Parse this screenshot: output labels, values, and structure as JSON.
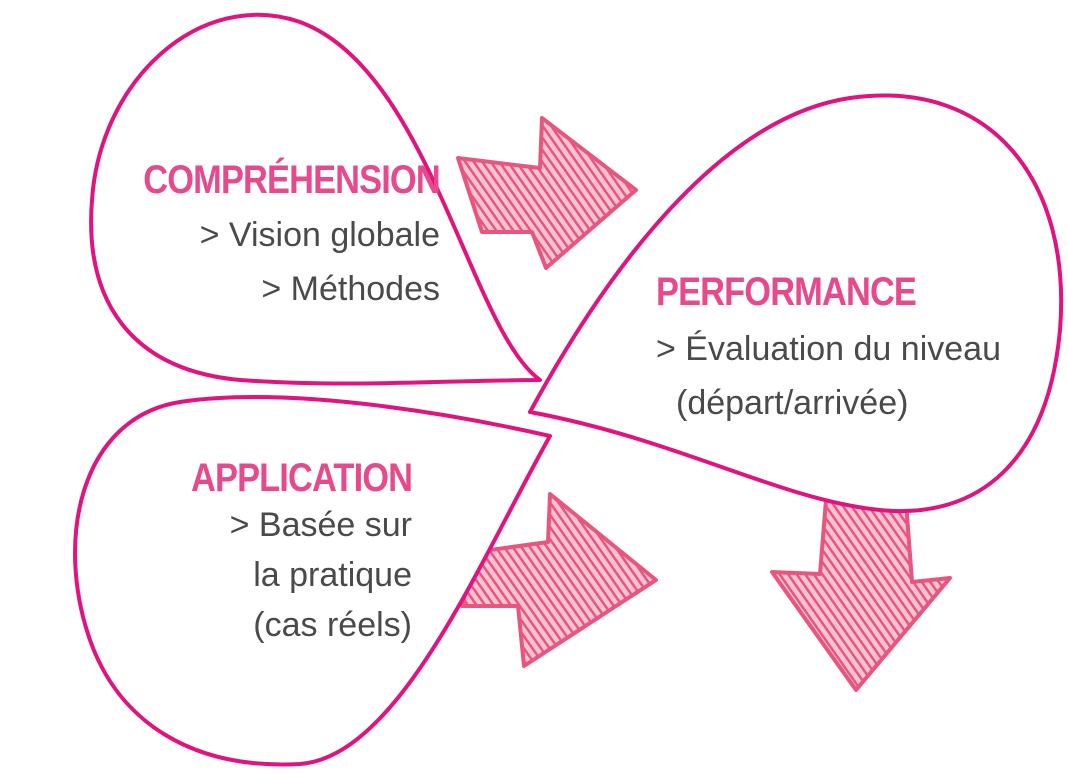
{
  "colors": {
    "outline": "#e0137f",
    "heading": "#e64a8d",
    "arrow": "#e8557f",
    "text": "#4a4a4a"
  },
  "diagram": {
    "comprehension": {
      "title": "COMPRÉHENSION",
      "items": [
        "> Vision globale",
        "> Méthodes"
      ]
    },
    "performance": {
      "title": "PERFORMANCE",
      "items": [
        "> Évaluation du niveau",
        "(départ/arrivée)"
      ]
    },
    "application": {
      "title": "APPLICATION",
      "items": [
        "> Basée sur",
        "la pratique",
        "(cas réels)"
      ]
    },
    "arrows": [
      "arrow-right",
      "arrow-right",
      "arrow-down"
    ]
  }
}
